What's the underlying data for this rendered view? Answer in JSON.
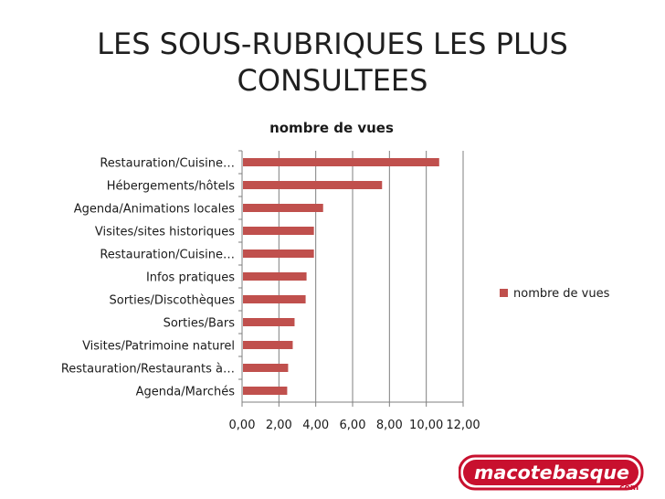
{
  "slide": {
    "title_line1": "LES SOUS-RUBRIQUES LES PLUS",
    "title_line2": "CONSULTEES",
    "logo_text": "macotebasque",
    "logo_suffix": ".com"
  },
  "colors": {
    "bar": "#c0504d",
    "axis": "#7f7f7f",
    "grid": "#7f7f7f",
    "logo_red": "#c8102e"
  },
  "chart_data": {
    "type": "bar",
    "orientation": "horizontal",
    "title": "nombre de vues",
    "categories": [
      "Restauration/Cuisine…",
      "Hébergements/hôtels",
      "Agenda/Animations locales",
      "Visites/sites historiques",
      "Restauration/Cuisine…",
      "Infos pratiques",
      "Sorties/Discothèques",
      "Sorties/Bars",
      "Visites/Patrimoine naturel",
      "Restauration/Restaurants à…",
      "Agenda/Marchés"
    ],
    "series": [
      {
        "name": "nombre de vues",
        "values": [
          10.7,
          7.6,
          4.4,
          3.9,
          3.9,
          3.5,
          3.45,
          2.85,
          2.75,
          2.5,
          2.45
        ]
      }
    ],
    "xlim": [
      0,
      12
    ],
    "xticks": [
      "0,00",
      "2,00",
      "4,00",
      "6,00",
      "8,00",
      "10,00",
      "12,00"
    ],
    "grid": true,
    "legend": "right"
  }
}
